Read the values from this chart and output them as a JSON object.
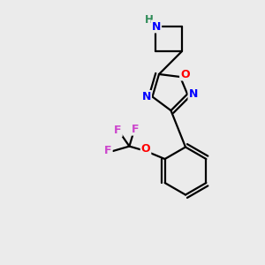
{
  "background_color": "#ebebeb",
  "bond_color": "#000000",
  "atom_colors": {
    "N": "#0000ff",
    "O_oxadiazole": "#ff0000",
    "O_ether": "#ff0000",
    "F": "#cc44cc",
    "H": "#2e8b57",
    "C": "#000000"
  },
  "figsize": [
    3.0,
    3.0
  ],
  "dpi": 100
}
